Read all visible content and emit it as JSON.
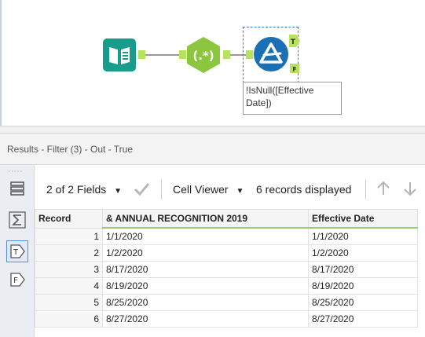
{
  "canvas": {
    "filter_annotation": "!IsNull([Effective Date])",
    "true_anchor_label": "T",
    "false_anchor_label": "F",
    "regex_label": "(.*)"
  },
  "results": {
    "title": "Results - Filter (3) - Out - True",
    "strip_true_label": "T",
    "strip_false_label": "F"
  },
  "toolbar": {
    "fields_label": "2 of 2 Fields",
    "cell_viewer_label": "Cell Viewer",
    "records_label": "6 records displayed"
  },
  "table": {
    "columns": [
      "Record",
      "& ANNUAL RECOGNITION 2019",
      "Effective Date"
    ],
    "rows": [
      {
        "record": "1",
        "annual": "1/1/2020",
        "effective": "1/1/2020"
      },
      {
        "record": "2",
        "annual": "1/2/2020",
        "effective": "1/2/2020"
      },
      {
        "record": "3",
        "annual": "8/17/2020",
        "effective": "8/17/2020"
      },
      {
        "record": "4",
        "annual": "8/19/2020",
        "effective": "8/19/2020"
      },
      {
        "record": "5",
        "annual": "8/25/2020",
        "effective": "8/25/2020"
      },
      {
        "record": "6",
        "annual": "8/27/2020",
        "effective": "8/27/2020"
      }
    ]
  },
  "colors": {
    "input_tool": "#1a9c8c",
    "regex_tool": "#8cc63f",
    "filter_tool": "#1a6fb5",
    "anchor": "#b7e25e",
    "selection": "#3a7bd5"
  },
  "icons": [
    "book-input-icon",
    "regex-icon",
    "filter-icon",
    "table-layout-icon",
    "sum-icon",
    "true-tag-icon",
    "false-tag-icon",
    "checkmark-icon",
    "up-arrow-icon",
    "down-arrow-icon",
    "dropdown-caret-icon"
  ]
}
